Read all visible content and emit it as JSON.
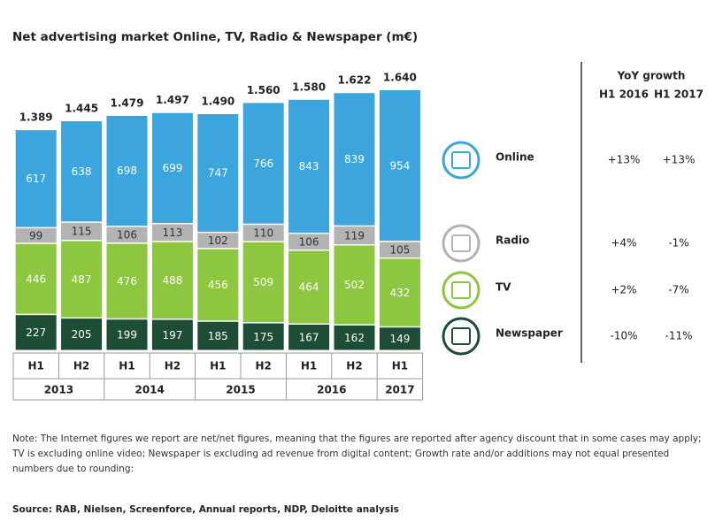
{
  "chart_data": {
    "type": "stacked-bar",
    "title": "Net advertising market Online, TV, Radio & Newspaper (m€)",
    "categories": [
      "H1",
      "H2",
      "H1",
      "H2",
      "H1",
      "H2",
      "H1",
      "H2",
      "H1"
    ],
    "years": [
      "2013",
      "2013",
      "2014",
      "2014",
      "2015",
      "2015",
      "2016",
      "2016",
      "2017"
    ],
    "series": [
      {
        "name": "Newspaper",
        "color": "#1e4d35",
        "label_color": "#ffffff",
        "values": [
          227,
          205,
          199,
          197,
          185,
          175,
          167,
          162,
          149
        ],
        "growth": [
          "-10%",
          "-11%"
        ]
      },
      {
        "name": "TV",
        "color": "#8dc63f",
        "label_color": "#ffffff",
        "values": [
          446,
          487,
          476,
          488,
          456,
          509,
          464,
          502,
          432
        ],
        "growth": [
          "+2%",
          "-7%"
        ]
      },
      {
        "name": "Radio",
        "color": "#b3b3b3",
        "label_color": "#333333",
        "values": [
          99,
          115,
          106,
          113,
          102,
          110,
          106,
          119,
          105
        ],
        "growth": [
          "+4%",
          "-1%"
        ]
      },
      {
        "name": "Online",
        "color": "#3ca5dd",
        "label_color": "#ffffff",
        "values": [
          617,
          638,
          698,
          699,
          747,
          766,
          843,
          839,
          954
        ],
        "growth": [
          "+13%",
          "+13%"
        ]
      }
    ],
    "totals": {
      "values": [
        1389,
        1445,
        1479,
        1497,
        1490,
        1560,
        1580,
        1622,
        1640
      ],
      "value_labels": [
        "1.389",
        "1.445",
        "1.479",
        "1.497",
        "1.490",
        "1.560",
        "1.580",
        "1.622",
        "1.640"
      ]
    },
    "growth_title": "YoY growth",
    "growth_columns": [
      "H1 2016",
      "H1 2017"
    ],
    "note": "Note: The Internet figures we report are net/net figures, meaning that the figures are reported after agency discount that in some cases may apply; TV is excluding online video; Newspaper is excluding ad revenue from digital content;  Growth rate and/or additions may not equal presented numbers due to rounding:",
    "source": "Source: RAB, Nielsen, Screenforce, Annual reports, NDP, Deloitte analysis"
  }
}
